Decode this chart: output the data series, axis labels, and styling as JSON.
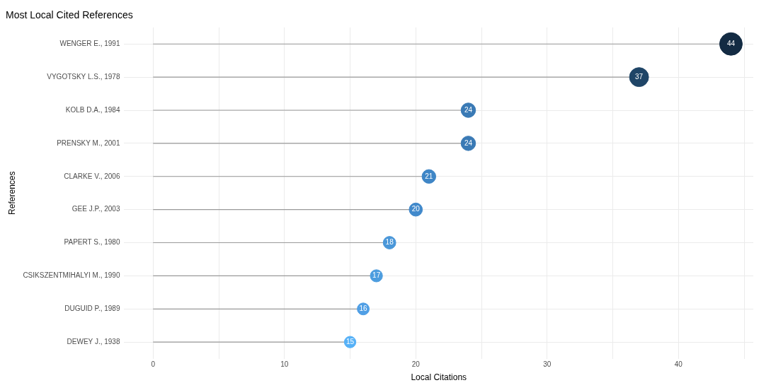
{
  "chart_data": {
    "type": "lollipop",
    "title": "Most Local Cited References",
    "xlabel": "Local Citations",
    "ylabel": "References",
    "orientation": "horizontal",
    "categories": [
      "WENGER E., 1991",
      "VYGOTSKY L.S., 1978",
      "KOLB D.A., 1984",
      "PRENSKY M., 2001",
      "CLARKE V., 2006",
      "GEE J.P., 2003",
      "PAPERT S., 1980",
      "CSIKSZENTMIHALYI M., 1990",
      "DUGUID P., 1989",
      "DEWEY J., 1938"
    ],
    "values": [
      44,
      37,
      24,
      24,
      21,
      20,
      18,
      17,
      16,
      15
    ],
    "sizes": [
      1,
      0.71,
      0.41,
      0.41,
      0.37,
      0.34,
      0.31,
      0.29,
      0.28,
      0.26
    ],
    "colors": [
      "#132b43",
      "#1f4567",
      "#3a7ab5",
      "#3a7ab5",
      "#3f86c6",
      "#4189cb",
      "#4a97d9",
      "#4d9ddf",
      "#509fe5",
      "#56b1f7"
    ],
    "data_labels": true,
    "xlim": [
      -2.2,
      45.7
    ],
    "xticks": [
      0,
      {
        "value": 5,
        "label": null
      },
      10,
      {
        "value": 15,
        "label": null
      },
      20,
      {
        "value": 25,
        "label": null
      },
      30,
      {
        "value": 35,
        "label": null
      },
      40,
      {
        "value": 45,
        "label": null
      }
    ],
    "grid": true,
    "legend": false
  }
}
